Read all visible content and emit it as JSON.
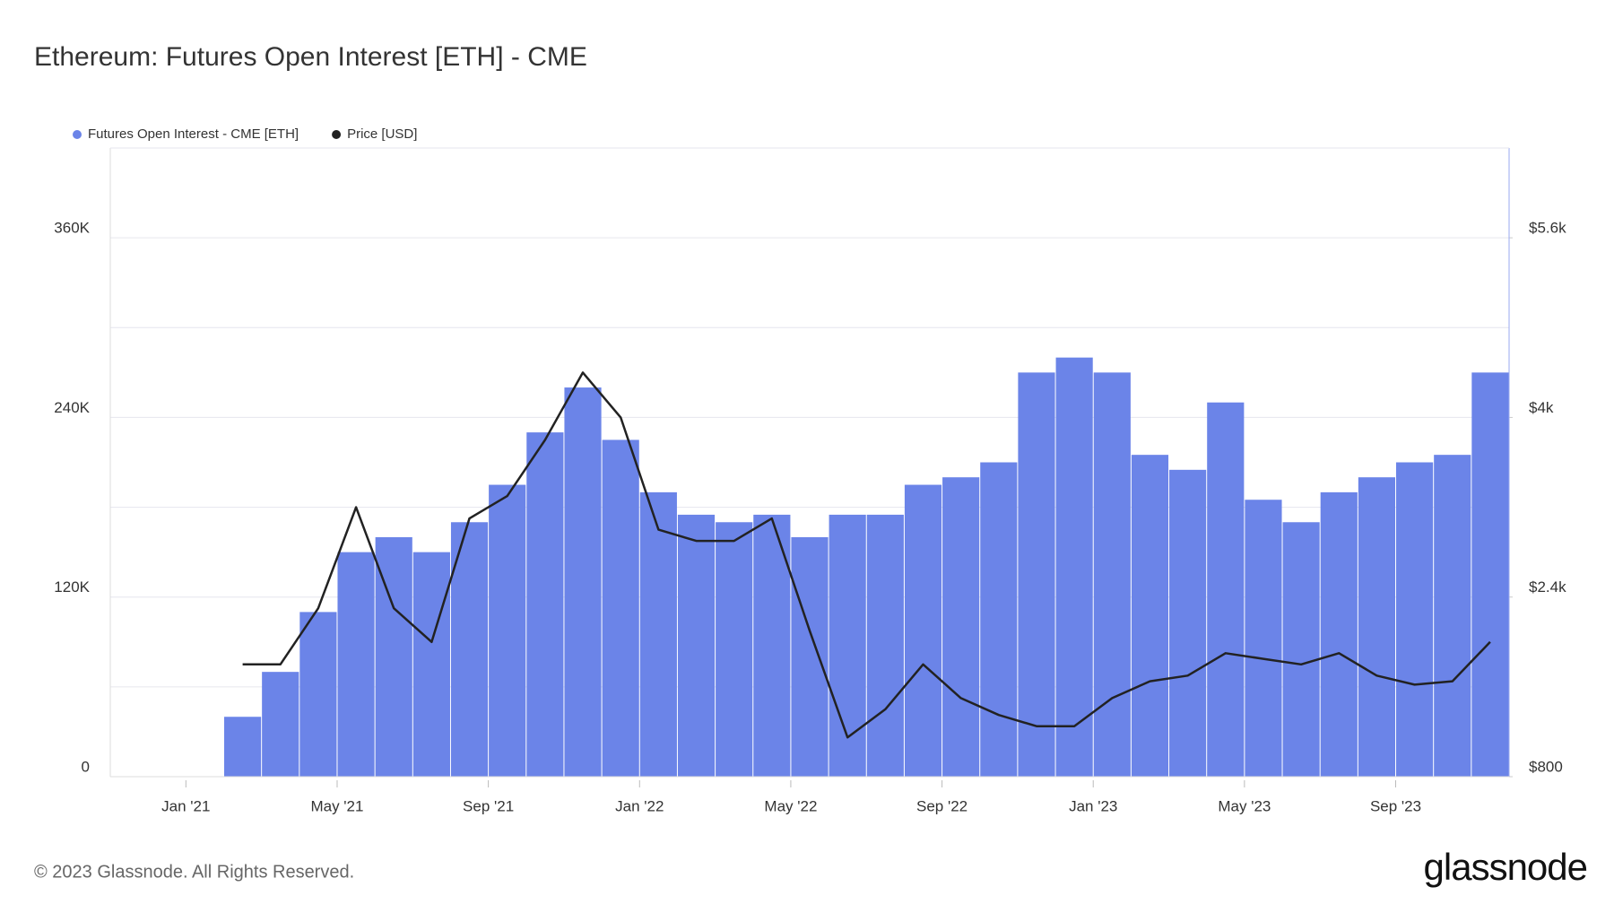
{
  "chart_data": {
    "type": "bar_line",
    "title": "Ethereum: Futures Open Interest [ETH] - CME",
    "source": "© 2023 Glassnode. All Rights Reserved.",
    "brand": "glassnode",
    "x": [
      "2021-02",
      "2021-03",
      "2021-04",
      "2021-05",
      "2021-06",
      "2021-07",
      "2021-08",
      "2021-09",
      "2021-10",
      "2021-11",
      "2021-12",
      "2022-01",
      "2022-02",
      "2022-03",
      "2022-04",
      "2022-05",
      "2022-06",
      "2022-07",
      "2022-08",
      "2022-09",
      "2022-10",
      "2022-11",
      "2022-12",
      "2023-01",
      "2023-02",
      "2023-03",
      "2023-04",
      "2023-05",
      "2023-06",
      "2023-07",
      "2023-08",
      "2023-09",
      "2023-10",
      "2023-11"
    ],
    "xlim": [
      "2020-11",
      "2023-12"
    ],
    "xticks": [
      {
        "value": "2021-01",
        "label": "Jan '21"
      },
      {
        "value": "2021-05",
        "label": "May '21"
      },
      {
        "value": "2021-09",
        "label": "Sep '21"
      },
      {
        "value": "2022-01",
        "label": "Jan '22"
      },
      {
        "value": "2022-05",
        "label": "May '22"
      },
      {
        "value": "2022-09",
        "label": "Sep '22"
      },
      {
        "value": "2023-01",
        "label": "Jan '23"
      },
      {
        "value": "2023-05",
        "label": "May '23"
      },
      {
        "value": "2023-09",
        "label": "Sep '23"
      }
    ],
    "ylim": [
      0,
      420000
    ],
    "yticks": [
      0,
      {
        "value": 120000,
        "label": "120K"
      },
      {
        "value": 240000,
        "label": "240K"
      },
      {
        "value": 360000,
        "label": "360K"
      }
    ],
    "y_minor_gridlines": [
      60000,
      180000,
      300000,
      420000
    ],
    "y2lim": [
      800,
      6400
    ],
    "y2ticks": [
      {
        "value": 800,
        "label": "$800"
      },
      {
        "value": 2400,
        "label": "$2.4k"
      },
      {
        "value": 4000,
        "label": "$4k"
      },
      {
        "value": 5600,
        "label": "$5.6k"
      }
    ],
    "grid": true,
    "legend": "top-left",
    "series": [
      {
        "name": "Futures Open Interest - CME [ETH]",
        "color": "#6b84e8",
        "kind": "bar",
        "values": [
          40000,
          70000,
          110000,
          150000,
          160000,
          150000,
          170000,
          195000,
          230000,
          260000,
          225000,
          190000,
          175000,
          170000,
          175000,
          160000,
          175000,
          175000,
          195000,
          200000,
          210000,
          270000,
          280000,
          270000,
          215000,
          205000,
          250000,
          185000,
          170000,
          190000,
          200000,
          210000,
          215000,
          270000
        ]
      },
      {
        "name": "Price [USD]",
        "color": "#222222",
        "kind": "line",
        "axis": "y2",
        "values": [
          1800,
          1800,
          2300,
          3200,
          2300,
          2000,
          3100,
          3300,
          3800,
          4400,
          4000,
          3000,
          2900,
          2900,
          3100,
          2100,
          1150,
          1400,
          1800,
          1500,
          1350,
          1250,
          1250,
          1500,
          1650,
          1700,
          1900,
          1850,
          1800,
          1900,
          1700,
          1620,
          1650,
          2000
        ]
      }
    ]
  }
}
